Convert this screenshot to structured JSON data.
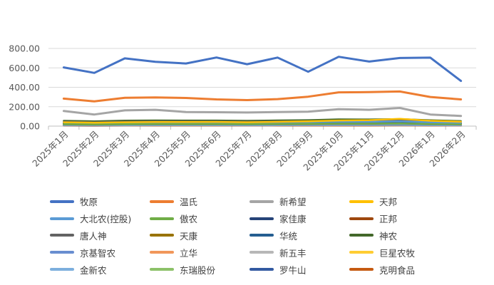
{
  "chart_data": {
    "type": "line",
    "title": "",
    "xlabel": "",
    "ylabel": "",
    "ylim": [
      0,
      800
    ],
    "y_ticks": [
      "800.00",
      "600.00",
      "400.00",
      "200.00",
      "0.00"
    ],
    "grid": "horizontal",
    "legend_position": "bottom",
    "categories": [
      "2025年1月",
      "2025年2月",
      "2025年3月",
      "2025年4月",
      "2025年5月",
      "2025年6月",
      "2025年7月",
      "2025年8月",
      "2025年9月",
      "2025年10月",
      "2025年11月",
      "2025年12月",
      "2026年1月",
      "2026年2月"
    ],
    "series": [
      {
        "name": "牧原",
        "color": "#4472C4",
        "values": [
          605,
          548,
          698,
          662,
          645,
          707,
          638,
          706,
          560,
          714,
          665,
          702,
          705,
          465
        ]
      },
      {
        "name": "温氏",
        "color": "#ED7D31",
        "values": [
          283,
          255,
          292,
          295,
          290,
          275,
          268,
          278,
          303,
          348,
          350,
          357,
          300,
          275
        ]
      },
      {
        "name": "新希望",
        "color": "#A5A5A5",
        "values": [
          156,
          120,
          162,
          168,
          145,
          143,
          140,
          145,
          148,
          175,
          168,
          187,
          120,
          105
        ]
      },
      {
        "name": "天邦",
        "color": "#FFC000",
        "values": [
          40,
          35,
          40,
          42,
          42,
          43,
          40,
          44,
          50,
          58,
          62,
          75,
          55,
          45
        ]
      },
      {
        "name": "大北农(控股)",
        "color": "#5B9BD5",
        "values": [
          38,
          33,
          38,
          40,
          40,
          40,
          38,
          40,
          42,
          45,
          45,
          50,
          40,
          35
        ]
      },
      {
        "name": "傲农",
        "color": "#70AD47",
        "values": [
          20,
          18,
          20,
          22,
          22,
          22,
          20,
          22,
          24,
          26,
          26,
          28,
          22,
          20
        ]
      },
      {
        "name": "家佳康",
        "color": "#264478",
        "values": [
          30,
          27,
          31,
          32,
          32,
          32,
          30,
          33,
          34,
          38,
          38,
          40,
          33,
          30
        ]
      },
      {
        "name": "正邦",
        "color": "#9E480E",
        "values": [
          25,
          22,
          26,
          27,
          28,
          28,
          26,
          28,
          30,
          34,
          32,
          35,
          28,
          24
        ]
      },
      {
        "name": "唐人神",
        "color": "#636363",
        "values": [
          45,
          40,
          46,
          48,
          47,
          47,
          45,
          48,
          50,
          56,
          55,
          58,
          47,
          42
        ]
      },
      {
        "name": "天康",
        "color": "#997300",
        "values": [
          18,
          16,
          19,
          20,
          20,
          20,
          19,
          21,
          22,
          25,
          25,
          27,
          21,
          18
        ]
      },
      {
        "name": "华统",
        "color": "#255E91",
        "values": [
          28,
          25,
          29,
          30,
          30,
          30,
          28,
          31,
          33,
          36,
          36,
          38,
          31,
          27
        ]
      },
      {
        "name": "神农",
        "color": "#43682B",
        "values": [
          55,
          50,
          57,
          59,
          58,
          58,
          55,
          59,
          62,
          70,
          69,
          73,
          60,
          52
        ]
      },
      {
        "name": "京基智农",
        "color": "#698ED0",
        "values": [
          15,
          13,
          16,
          16,
          16,
          16,
          15,
          17,
          18,
          20,
          20,
          22,
          17,
          15
        ]
      },
      {
        "name": "立华",
        "color": "#F1975A",
        "values": [
          22,
          20,
          23,
          24,
          24,
          24,
          22,
          25,
          26,
          29,
          29,
          31,
          25,
          22
        ]
      },
      {
        "name": "新五丰",
        "color": "#B7B7B7",
        "values": [
          35,
          31,
          36,
          37,
          37,
          37,
          35,
          38,
          40,
          44,
          44,
          46,
          38,
          33
        ]
      },
      {
        "name": "巨星农牧",
        "color": "#FFCD33",
        "values": [
          32,
          29,
          33,
          34,
          34,
          34,
          32,
          35,
          37,
          41,
          41,
          43,
          35,
          31
        ]
      },
      {
        "name": "金新农",
        "color": "#7CAFDD",
        "values": [
          8,
          7,
          8,
          9,
          9,
          9,
          8,
          9,
          10,
          11,
          11,
          12,
          9,
          8
        ]
      },
      {
        "name": "东瑞股份",
        "color": "#8CC168",
        "values": [
          12,
          11,
          13,
          13,
          13,
          13,
          12,
          14,
          15,
          16,
          16,
          17,
          14,
          12
        ]
      },
      {
        "name": "罗牛山",
        "color": "#335AA1",
        "values": [
          10,
          9,
          10,
          11,
          11,
          11,
          10,
          11,
          12,
          13,
          13,
          14,
          11,
          10
        ]
      },
      {
        "name": "克明食品",
        "color": "#C55A11",
        "values": [
          5,
          4,
          5,
          5,
          5,
          5,
          5,
          5,
          6,
          6,
          6,
          7,
          5,
          5
        ]
      }
    ]
  }
}
